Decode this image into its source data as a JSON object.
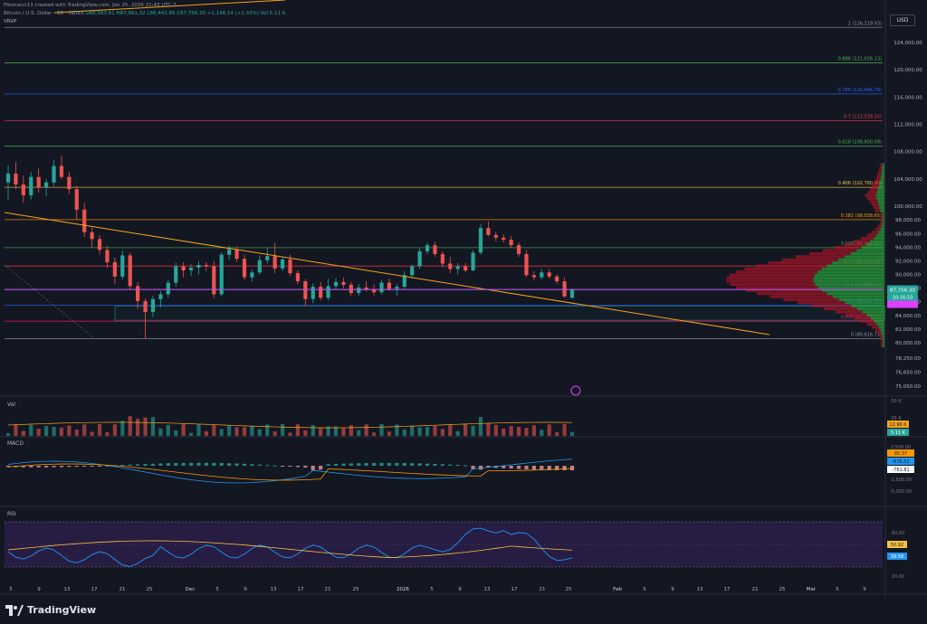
{
  "header": {
    "attribution": "Fibonacci13 created with TradingView.com, Jan 25, 2026 21:43 UTC-7",
    "title": "Bitcoin / U.S. Dollar · 1D · INDEX",
    "ohlc": "O86,563.61 H87,961.32 L86,441.85 C87,756.30 +1,148.14 (+1.33%)",
    "vol": "Vol 5.11 K",
    "indicator": "VRVP"
  },
  "currency_button": "USD",
  "price_axis": [
    "124,000.00",
    "120,000.00",
    "116,000.00",
    "112,000.00",
    "108,000.00",
    "104,000.00",
    "100,000.00",
    "98,000.00",
    "96,000.00",
    "94,000.00",
    "92,000.00",
    "90,000.00",
    "88,000.00",
    "86,000.00",
    "84,000.00",
    "82,000.00",
    "80,000.00",
    "78,250.00",
    "76,650.00",
    "75,050.00"
  ],
  "fib_levels": [
    {
      "label": "1 (126,219.03)",
      "price": 126219,
      "color": "#9598a1"
    },
    {
      "label": "0.886 (121,026.13)",
      "price": 121026,
      "color": "#4caf50"
    },
    {
      "label": "0.786 (116,466.78)",
      "price": 116467,
      "color": "#2962ff"
    },
    {
      "label": "0.7 (112,539.25)",
      "price": 112539,
      "color": "#f23645"
    },
    {
      "label": "0.618 (108,800.09)",
      "price": 108800,
      "color": "#4caf50"
    },
    {
      "label": "0.406 (102,780.90)",
      "price": 102781,
      "color": "#f7c548"
    },
    {
      "label": "0.382 (98,038.65)",
      "price": 98039,
      "color": "#ff9800"
    },
    {
      "label": "0.236 (93,931.01)",
      "price": 93931,
      "color": "#4caf50"
    },
    {
      "label": "0.17 (91,240.18)",
      "price": 91240,
      "color": "#f23645"
    },
    {
      "label": "0.1 (87,808.44)",
      "price": 87808,
      "color": "#9c27b0"
    },
    {
      "label": "0.05 (85,481.02)",
      "price": 85481,
      "color": "#2962ff"
    },
    {
      "label": "0.036 (83,153.21)",
      "price": 83153,
      "color": "#e91e63"
    },
    {
      "label": "0 (80,616.71)",
      "price": 80617,
      "color": "#9598a1"
    }
  ],
  "price_tags": {
    "last": "87,756.30",
    "countdown": "10:16:10"
  },
  "volume_pane": {
    "label": "Vol",
    "axis_top": "50 K",
    "axis_mid": "25 K",
    "value": "12.96 K",
    "value2": "5.11 K"
  },
  "macd_pane": {
    "label": "MACD",
    "axis": [
      "2,500.00",
      "-2,500.00",
      "-5,000.00"
    ],
    "values": [
      "85.37",
      "-676.52",
      "-761.81"
    ]
  },
  "rsi_pane": {
    "label": "RSI",
    "axis": [
      "60.00",
      "40.00",
      "20.00"
    ],
    "values": [
      "50.92",
      "39.58"
    ]
  },
  "time_axis": [
    "5",
    "9",
    "13",
    "17",
    "21",
    "25",
    "Dec",
    "5",
    "9",
    "13",
    "17",
    "21",
    "25",
    "2026",
    "5",
    "9",
    "13",
    "17",
    "21",
    "25",
    "Feb",
    "5",
    "9",
    "13",
    "17",
    "21",
    "25",
    "Mar",
    "5",
    "9"
  ],
  "branding": "TradingView",
  "colors": {
    "up": "#26a69a",
    "down": "#ef5350",
    "bg": "#131722",
    "grid": "#1e222d",
    "trend": "#f7a21b",
    "rsi_band": "#2a1f4a",
    "rsi_line": "#2196f3",
    "rsi_ma": "#f5c242"
  }
}
